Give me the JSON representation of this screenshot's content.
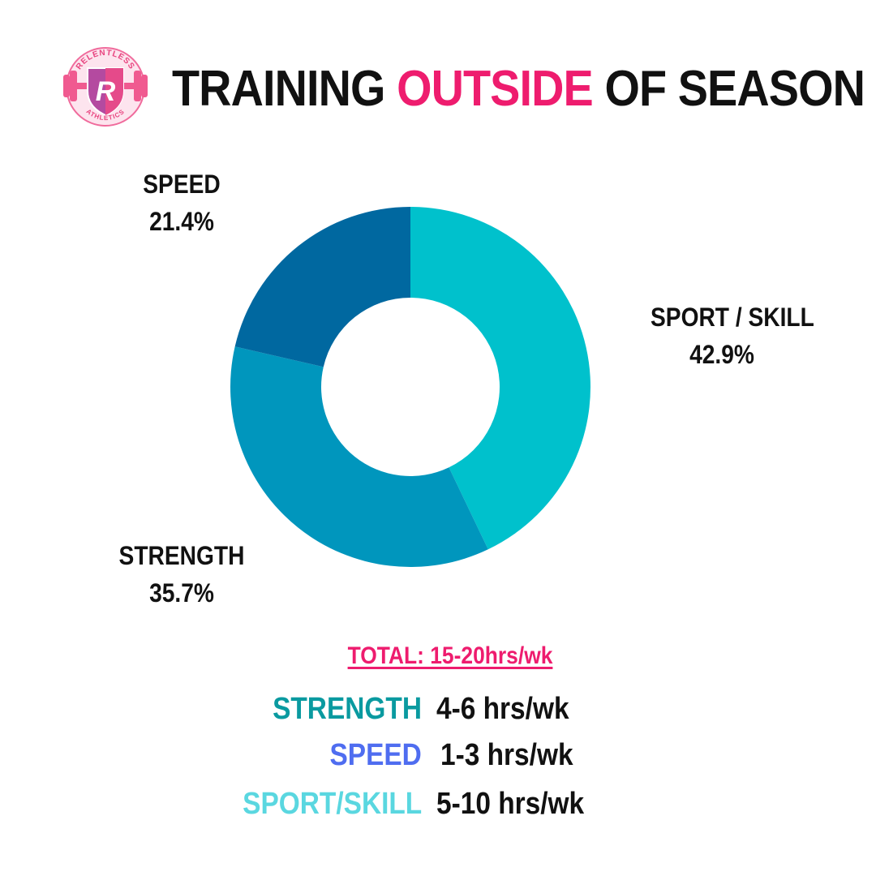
{
  "header": {
    "title_part1": "TRAINING",
    "title_highlight": "OUTSIDE",
    "title_part2": "OF SEASON",
    "logo_text_top": "RELENTLESS",
    "logo_text_bottom": "ATHLETICS",
    "logo_letter": "R"
  },
  "chart_data": {
    "type": "pie",
    "donut": true,
    "categories": [
      "SPORT / SKILL",
      "STRENGTH",
      "SPEED"
    ],
    "values": [
      42.9,
      35.7,
      21.4
    ],
    "value_labels": [
      "42.9%",
      "35.7%",
      "21.4%"
    ],
    "colors": [
      "#00c1cc",
      "#0096bd",
      "#0068a0"
    ],
    "start_angle_deg": 0,
    "direction": "clockwise",
    "legend": "none"
  },
  "summary": {
    "total": "TOTAL: 15-20hrs/wk",
    "rows": [
      {
        "label": "STRENGTH",
        "value": "4-6 hrs/wk",
        "color": "#0a9aa0"
      },
      {
        "label": "SPEED",
        "value": "1-3 hrs/wk",
        "color": "#4f6df0"
      },
      {
        "label": "SPORT/SKILL",
        "value": "5-10 hrs/wk",
        "color": "#5ad7e0"
      }
    ]
  },
  "theme": {
    "accent": "#ee1c6e",
    "text": "#111111",
    "background": "#ffffff"
  }
}
